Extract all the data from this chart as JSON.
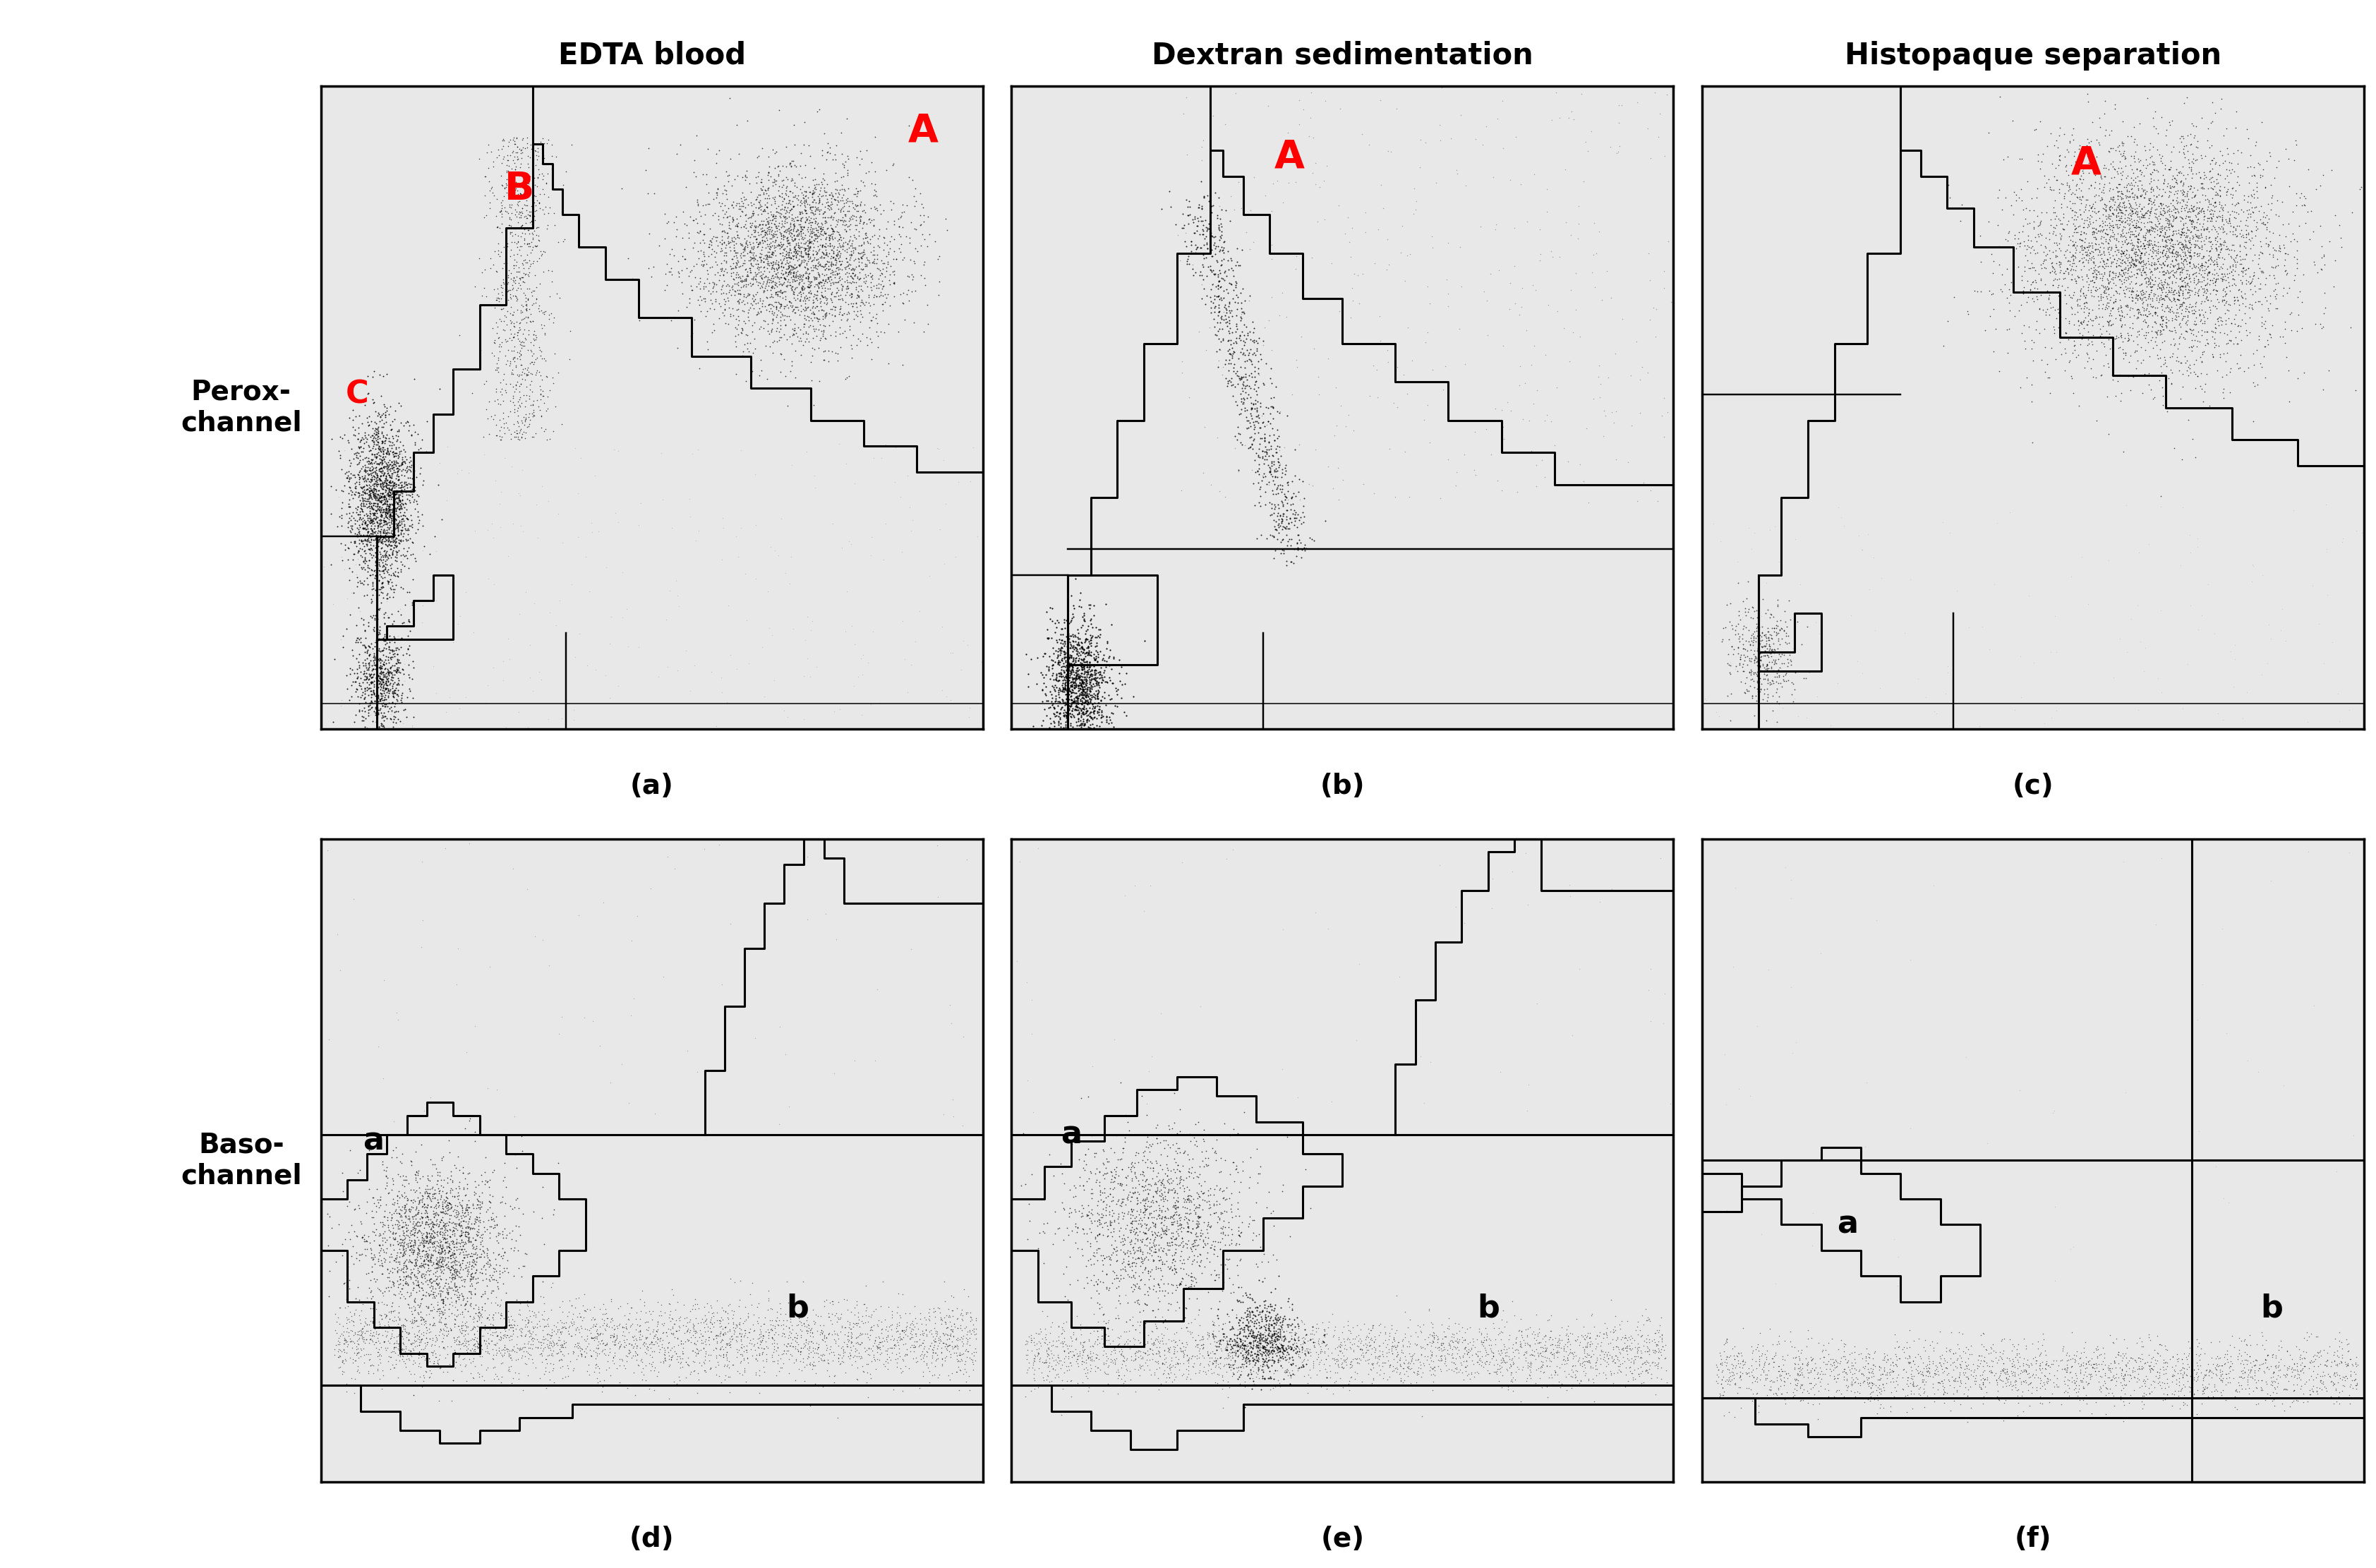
{
  "col_titles": [
    "EDTA blood",
    "Dextran sedimentation",
    "Histopaque separation"
  ],
  "row_labels": [
    "Perox-\nchannel",
    "Baso-\nchannel"
  ],
  "subplot_labels": [
    "(a)",
    "(b)",
    "(c)",
    "(d)",
    "(e)",
    "(f)"
  ],
  "title_fontsize": 30,
  "annot_fontsize_large": 40,
  "annot_fontsize_small": 32,
  "sublabel_fontsize": 28,
  "rowlabel_fontsize": 28,
  "seed": 42
}
